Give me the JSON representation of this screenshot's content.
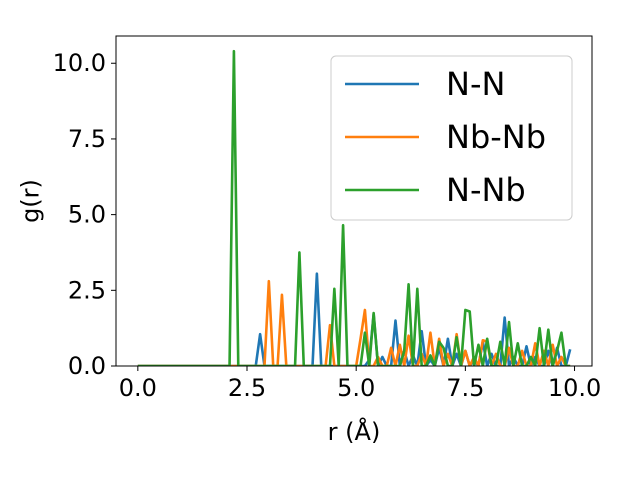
{
  "chart_data": {
    "type": "line",
    "xlabel": "r (Å)",
    "ylabel": "g(r)",
    "xlim": [
      -0.5,
      10.4
    ],
    "ylim": [
      0,
      10.9
    ],
    "xticks": [
      0.0,
      2.5,
      5.0,
      7.5,
      10.0
    ],
    "xtick_labels": [
      "0.0",
      "2.5",
      "5.0",
      "7.5",
      "10.0"
    ],
    "yticks": [
      0.0,
      2.5,
      5.0,
      7.5,
      10.0
    ],
    "ytick_labels": [
      "0.0",
      "2.5",
      "5.0",
      "7.5",
      "10.0"
    ],
    "grid": false,
    "legend_position": "top-right",
    "series": [
      {
        "name": "N-N",
        "color": "#1f77b4",
        "x": [
          0.0,
          2.7,
          2.8,
          2.9,
          4.0,
          4.1,
          4.2,
          5.2,
          5.3,
          5.4,
          5.5,
          5.6,
          5.7,
          5.8,
          5.9,
          6.0,
          6.1,
          6.2,
          6.3,
          6.4,
          6.5,
          6.6,
          6.7,
          6.8,
          6.9,
          7.0,
          7.1,
          7.2,
          7.3,
          7.4,
          7.5,
          7.6,
          7.7,
          7.8,
          7.9,
          8.0,
          8.1,
          8.2,
          8.3,
          8.4,
          8.5,
          8.6,
          8.7,
          8.8,
          8.9,
          9.0,
          9.1,
          9.2,
          9.3,
          9.4,
          9.5,
          9.6,
          9.7,
          9.8,
          9.9
        ],
        "y": [
          0.0,
          0.0,
          1.05,
          0.0,
          0.0,
          3.05,
          0.0,
          0.0,
          0.2,
          1.7,
          0.0,
          0.3,
          0.0,
          0.0,
          1.5,
          0.0,
          0.5,
          0.0,
          0.35,
          0.0,
          1.15,
          0.0,
          0.2,
          0.0,
          0.6,
          0.0,
          0.9,
          0.0,
          0.4,
          0.0,
          0.5,
          0.0,
          0.2,
          0.0,
          0.8,
          0.0,
          0.4,
          0.0,
          0.0,
          1.6,
          0.0,
          0.3,
          0.0,
          0.0,
          0.65,
          0.0,
          0.3,
          0.0,
          0.0,
          0.5,
          0.0,
          0.6,
          0.0,
          0.0,
          0.55
        ]
      },
      {
        "name": "Nb-Nb",
        "color": "#ff7f0e",
        "x": [
          0.0,
          2.9,
          3.0,
          3.1,
          3.2,
          3.3,
          3.4,
          4.3,
          4.4,
          4.5,
          5.0,
          5.1,
          5.2,
          5.3,
          5.4,
          5.5,
          5.6,
          5.7,
          5.8,
          5.9,
          6.0,
          6.1,
          6.2,
          6.3,
          6.4,
          6.5,
          6.6,
          6.7,
          6.8,
          6.9,
          7.0,
          7.1,
          7.2,
          7.3,
          7.4,
          7.5,
          7.6,
          7.7,
          7.8,
          7.9,
          8.0,
          8.1,
          8.2,
          8.3,
          8.4,
          8.5,
          8.6,
          8.7,
          8.8,
          8.9,
          9.0,
          9.1,
          9.2,
          9.3,
          9.4,
          9.5,
          9.6,
          9.7,
          9.8,
          9.9
        ],
        "y": [
          0.0,
          0.0,
          2.8,
          0.0,
          0.0,
          2.35,
          0.0,
          0.0,
          1.35,
          0.0,
          0.0,
          0.9,
          1.85,
          0.0,
          0.0,
          0.3,
          0.0,
          0.0,
          0.6,
          0.0,
          0.7,
          0.0,
          1.0,
          0.0,
          0.0,
          0.4,
          0.0,
          1.1,
          0.0,
          0.9,
          0.0,
          0.4,
          0.0,
          1.05,
          0.0,
          0.5,
          0.0,
          0.3,
          0.0,
          0.85,
          0.8,
          0.0,
          0.4,
          0.0,
          0.0,
          0.6,
          0.0,
          0.0,
          0.5,
          0.0,
          0.0,
          0.75,
          0.0,
          0.5,
          0.0,
          0.7,
          0.0,
          0.3,
          0.0,
          0.0
        ]
      },
      {
        "name": "N-Nb",
        "color": "#2ca02c",
        "x": [
          0.0,
          2.1,
          2.2,
          2.3,
          3.6,
          3.7,
          3.8,
          4.4,
          4.5,
          4.6,
          4.7,
          4.8,
          4.9,
          5.1,
          5.2,
          5.3,
          5.4,
          5.5,
          6.0,
          6.1,
          6.2,
          6.3,
          6.4,
          6.5,
          6.6,
          6.7,
          6.8,
          6.9,
          7.0,
          7.1,
          7.2,
          7.3,
          7.4,
          7.5,
          7.6,
          7.7,
          7.8,
          7.9,
          8.0,
          8.1,
          8.2,
          8.3,
          8.4,
          8.5,
          8.6,
          8.7,
          8.8,
          8.9,
          9.0,
          9.1,
          9.2,
          9.3,
          9.4,
          9.5,
          9.6,
          9.7,
          9.8,
          9.9
        ],
        "y": [
          0.0,
          0.0,
          10.4,
          0.0,
          0.0,
          3.75,
          0.0,
          0.0,
          2.55,
          0.0,
          4.65,
          0.0,
          0.0,
          0.0,
          1.1,
          0.0,
          1.75,
          0.0,
          0.0,
          0.5,
          2.7,
          0.0,
          2.55,
          0.0,
          0.0,
          0.35,
          0.0,
          0.8,
          0.6,
          0.0,
          0.0,
          0.95,
          0.0,
          1.85,
          1.8,
          0.0,
          0.7,
          0.0,
          0.9,
          0.0,
          0.0,
          0.8,
          0.0,
          1.45,
          0.0,
          0.75,
          0.0,
          0.0,
          0.3,
          0.0,
          1.25,
          0.0,
          1.2,
          0.0,
          0.5,
          1.1,
          0.0,
          0.0
        ]
      }
    ]
  }
}
